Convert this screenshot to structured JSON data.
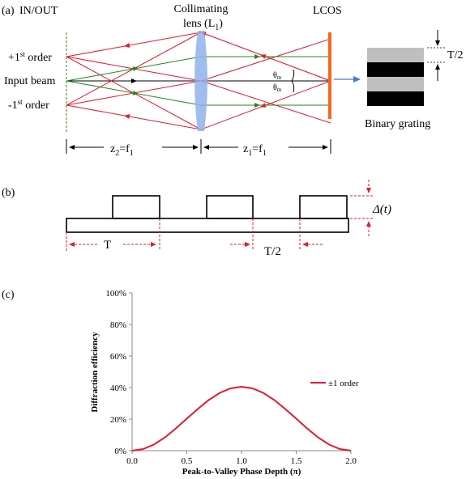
{
  "panel_a": {
    "label": "(a)",
    "in_out": "IN/OUT",
    "lens_label_1": "Collimating",
    "lens_label_2": "lens (L",
    "lens_sub": "1",
    "lens_close": ")",
    "lcos": "LCOS",
    "plus_first_pre": "+1",
    "plus_first_sup": "st",
    "plus_first_post": " order",
    "input_beam": "Input beam",
    "minus_first_pre": "-1",
    "minus_first_sup": "st",
    "minus_first_post": " order",
    "theta": "θ",
    "theta_sub": "m",
    "z2": "z",
    "z2_sub": "2",
    "z2_eq": "=f",
    "z2_eq_sub": "1",
    "z1": "z",
    "z1_sub": "1",
    "z1_eq": "=f",
    "z1_eq_sub": "1",
    "half_period": "T/2",
    "binary_grating": "Binary grating",
    "colors": {
      "ray_red": "#e8182e",
      "ray_green": "#1f8a1f",
      "lens": "#8fb3ea",
      "lcos": "#f26a1b",
      "arrow_blue": "#4a79c9"
    }
  },
  "panel_b": {
    "label": "(b)",
    "period": "T",
    "half_period": "T/2",
    "delta": "Δ(t)"
  },
  "panel_c": {
    "label": "(c)",
    "chart_data": {
      "type": "line",
      "xlabel": "Peak-to-Valley Phase Depth (π)",
      "ylabel": "Diffraction efficiency",
      "xlim": [
        0,
        2
      ],
      "ylim": [
        0,
        100
      ],
      "x_ticks": [
        "0.0",
        "0.5",
        "1.0",
        "1.5",
        "2.0"
      ],
      "y_ticks": [
        "0%",
        "20%",
        "40%",
        "60%",
        "80%",
        "100%"
      ],
      "legend_position": "right",
      "grid": false,
      "series": [
        {
          "name": "±1 order",
          "color": "#e8182e",
          "x": [
            0,
            0.1,
            0.2,
            0.3,
            0.4,
            0.5,
            0.6,
            0.7,
            0.8,
            0.9,
            1.0,
            1.1,
            1.2,
            1.3,
            1.4,
            1.5,
            1.6,
            1.7,
            1.8,
            1.9,
            2.0
          ],
          "y": [
            0,
            1.0,
            3.9,
            8.4,
            14.1,
            20.3,
            26.4,
            32.1,
            36.6,
            39.5,
            40.5,
            39.5,
            36.6,
            32.1,
            26.4,
            20.3,
            14.1,
            8.4,
            3.9,
            1.0,
            0
          ]
        }
      ]
    }
  }
}
